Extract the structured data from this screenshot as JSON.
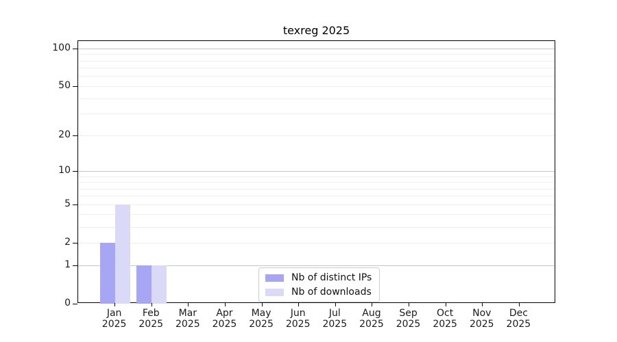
{
  "title": "texreg 2025",
  "chart_data": {
    "type": "bar",
    "title": "texreg 2025",
    "categories": [
      "Jan",
      "Feb",
      "Mar",
      "Apr",
      "May",
      "Jun",
      "Jul",
      "Aug",
      "Sep",
      "Oct",
      "Nov",
      "Dec"
    ],
    "x_tick_year": "2025",
    "series": [
      {
        "name": "Nb of distinct IPs",
        "color": "#a6a6f4",
        "values": [
          2,
          1,
          0,
          0,
          0,
          0,
          0,
          0,
          0,
          0,
          0,
          0
        ]
      },
      {
        "name": "Nb of downloads",
        "color": "#dadaf8",
        "values": [
          5,
          1,
          0,
          0,
          0,
          0,
          0,
          0,
          0,
          0,
          0,
          0
        ]
      }
    ],
    "y_scale": "log10(1+v)",
    "y_ticks": [
      0,
      1,
      2,
      5,
      10,
      20,
      50,
      100
    ],
    "ylim": [
      0,
      115
    ],
    "grid_major": [
      1,
      10,
      100
    ],
    "grid_minor": [
      2,
      3,
      4,
      5,
      6,
      7,
      8,
      9,
      20,
      30,
      40,
      50,
      60,
      70,
      80,
      90
    ],
    "legend_position": "bottom-center"
  },
  "colors": {
    "grid_major": "#c5c5c5",
    "grid_minor": "#eeeeee",
    "axis": "#000000",
    "background": "#ffffff"
  }
}
